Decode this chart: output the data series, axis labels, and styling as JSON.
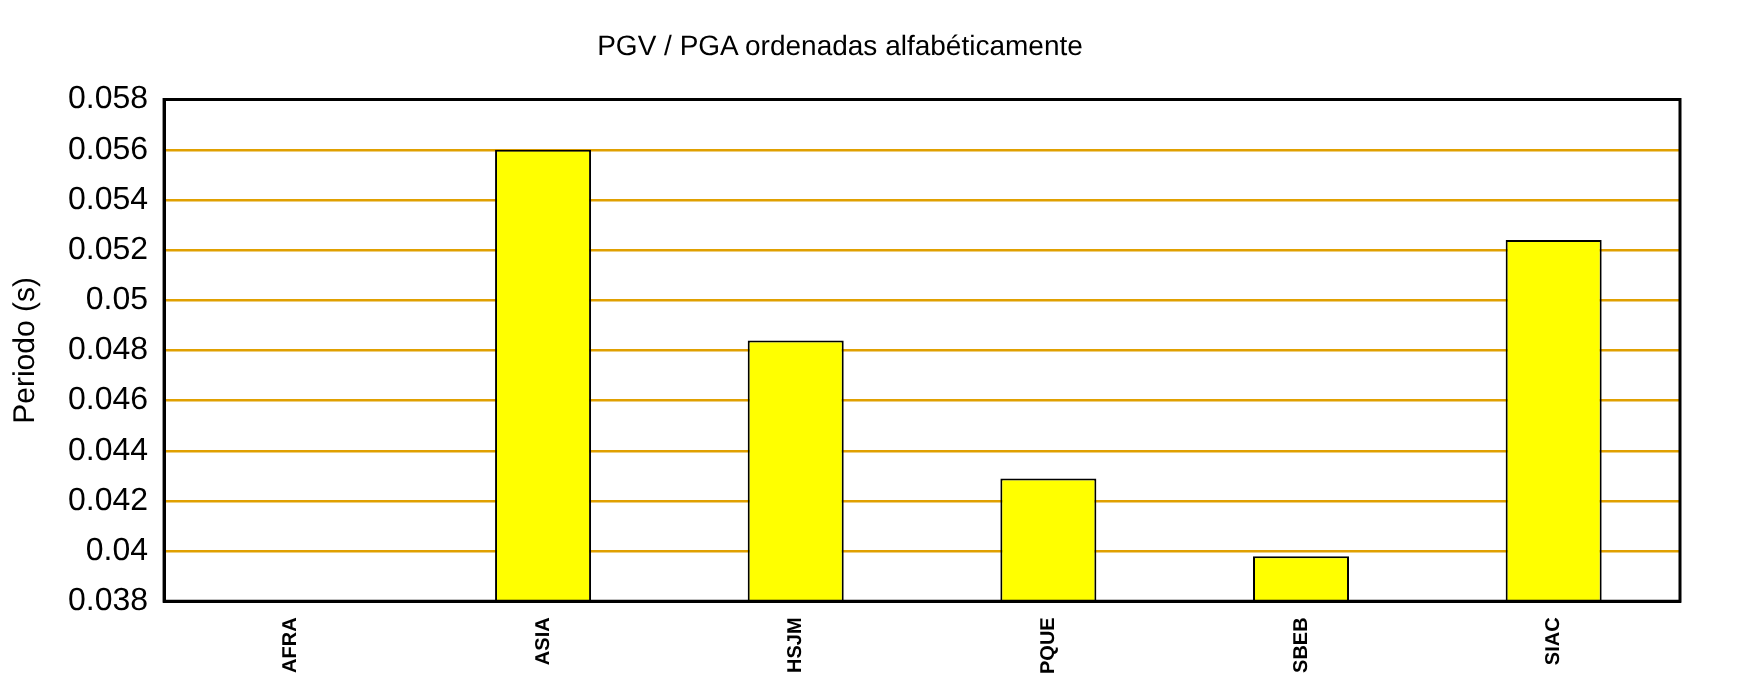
{
  "chart_data": {
    "type": "bar",
    "title": "PGV / PGA ordenadas alfabéticamente",
    "ylabel": "Periodo (s)",
    "categories": [
      "AFRA",
      "ASIA",
      "HSJM",
      "PQUE",
      "SBEB",
      "SIAC"
    ],
    "series": [
      {
        "color": "#ffff00",
        "values": [
          null,
          0.056,
          0.0484,
          0.0429,
          0.0398,
          0.0524
        ]
      }
    ],
    "ylim": [
      0.038,
      0.058
    ],
    "yticks": [
      0.038,
      0.04,
      0.042,
      0.044,
      0.046,
      0.048,
      0.05,
      0.052,
      0.054,
      0.056,
      0.058
    ],
    "grid": "y",
    "legend": false
  }
}
